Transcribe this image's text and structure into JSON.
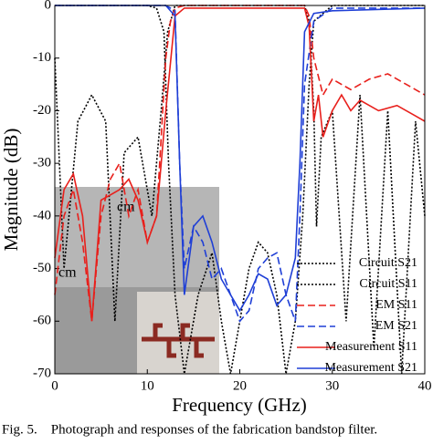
{
  "chart_data": {
    "type": "line",
    "xlabel": "Frequency (GHz)",
    "ylabel": "Magnitude (dB)",
    "xlim": [
      0,
      40
    ],
    "ylim": [
      -70,
      0
    ],
    "xticks": [
      0,
      10,
      20,
      30,
      40
    ],
    "yticks": [
      0,
      -10,
      -20,
      -30,
      -40,
      -50,
      -60,
      -70
    ],
    "legend": "lower right",
    "photo_text": [
      "cm",
      "cm"
    ],
    "series": [
      {
        "name": "Circuit S21",
        "color": "#000000",
        "dash": "dotted",
        "x": [
          0,
          10,
          11,
          11.8,
          12.3,
          13,
          14,
          15.5,
          17,
          18,
          19,
          20,
          21,
          22,
          23,
          24,
          25,
          26,
          26.8,
          27.5,
          28,
          30,
          40
        ],
        "values": [
          0,
          0,
          -0.5,
          -5,
          -30,
          -55,
          -70,
          -55,
          -47,
          -60,
          -70,
          -60,
          -50,
          -45,
          -47,
          -55,
          -70,
          -60,
          -40,
          -15,
          -3,
          0,
          0
        ]
      },
      {
        "name": "Circuit S11",
        "color": "#000000",
        "dash": "dotted",
        "x": [
          0,
          1,
          2.5,
          4,
          5.5,
          6.5,
          7.5,
          9,
          10.5,
          11.5,
          12.2,
          13,
          27,
          27.5,
          28,
          28.3,
          28.8,
          30,
          31.5,
          33,
          34.5,
          36,
          37.5,
          39,
          40
        ],
        "values": [
          -10,
          -50,
          -22,
          -17,
          -22,
          -60,
          -28,
          -25,
          -40,
          -20,
          -5,
          0,
          0,
          -3,
          -20,
          -42,
          -25,
          -20,
          -60,
          -17,
          -65,
          -20,
          -70,
          -22,
          -40
        ]
      },
      {
        "name": "EM S11",
        "color": "#e8201c",
        "dash": "dashed",
        "x": [
          0,
          1,
          2,
          3,
          4,
          5,
          6,
          7,
          8,
          9,
          10,
          11,
          12,
          12.5,
          13,
          14,
          27,
          27.5,
          28,
          29,
          30,
          32,
          34,
          36,
          38,
          40
        ],
        "values": [
          -55,
          -40,
          -35,
          -45,
          -60,
          -40,
          -33,
          -30,
          -40,
          -35,
          -45,
          -40,
          -10,
          -3,
          -0.5,
          0,
          0,
          -2,
          -10,
          -17,
          -14,
          -16,
          -14,
          -13,
          -15,
          -17
        ]
      },
      {
        "name": "EM S21",
        "color": "#1f3fd6",
        "dash": "dashed",
        "x": [
          0,
          12,
          13,
          13.5,
          14,
          15,
          16,
          17,
          18,
          19,
          20,
          21,
          22,
          23,
          24,
          25,
          26,
          26.5,
          27,
          28,
          30,
          40
        ],
        "values": [
          0,
          0,
          -1,
          -30,
          -50,
          -42,
          -45,
          -52,
          -50,
          -55,
          -60,
          -58,
          -50,
          -48,
          -47,
          -55,
          -60,
          -40,
          -15,
          -3,
          -0.5,
          -0.5
        ]
      },
      {
        "name": "Measurement S11",
        "color": "#e8201c",
        "dash": "solid",
        "x": [
          0,
          1,
          2,
          3,
          4,
          5,
          6,
          7,
          8,
          9,
          10,
          11,
          12,
          13,
          14,
          27,
          27.5,
          28,
          28.5,
          29,
          30,
          31,
          32,
          33,
          35,
          37,
          39,
          40
        ],
        "values": [
          -48,
          -35,
          -32,
          -40,
          -60,
          -37,
          -36,
          -35,
          -33,
          -37,
          -45,
          -40,
          -20,
          -2,
          -0.5,
          -0.5,
          -4,
          -22,
          -17,
          -25,
          -20,
          -17,
          -20,
          -18,
          -20,
          -19,
          -21,
          -22
        ]
      },
      {
        "name": "Measurement S21",
        "color": "#1f3fd6",
        "dash": "solid",
        "x": [
          0,
          12,
          13,
          13.5,
          14,
          15,
          16,
          17,
          18,
          19,
          20,
          21,
          22,
          23,
          24,
          25,
          26,
          26.5,
          27,
          28,
          30,
          40
        ],
        "values": [
          0,
          0,
          -2,
          -30,
          -55,
          -42,
          -40,
          -45,
          -52,
          -55,
          -58,
          -55,
          -51,
          -52,
          -57,
          -55,
          -48,
          -30,
          -5,
          -1.5,
          -1,
          -0.5
        ]
      }
    ]
  },
  "caption": "Fig. 5.    Photograph and responses of the fabrication bandstop filter."
}
